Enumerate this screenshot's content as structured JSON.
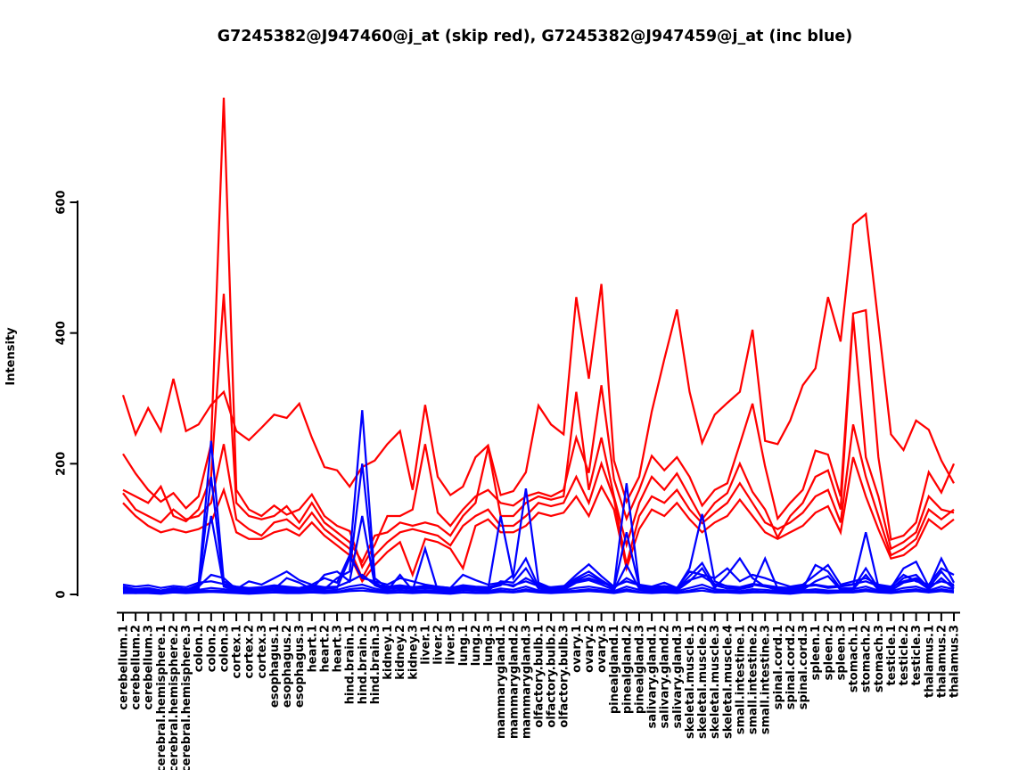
{
  "chart_data": {
    "type": "line",
    "title": "G7245382@J947460@j_at (skip red), G7245382@J947459@j_at (inc blue)",
    "xlabel": "",
    "ylabel": "Intensity",
    "ylim": [
      0,
      770
    ],
    "yticks": [
      0,
      200,
      400,
      600
    ],
    "grid": false,
    "legend": "none (encoded in title: skip = red, inc = blue)",
    "colors": {
      "skip": "#FF0000",
      "inc": "#0000FF"
    },
    "categories": [
      "cerebellum.1",
      "cerebellum.2",
      "cerebellum.3",
      "cerebral.hemisphere.1",
      "cerebral.hemisphere.2",
      "cerebral.hemisphere.3",
      "colon.1",
      "colon.2",
      "colon.3",
      "cortex.1",
      "cortex.2",
      "cortex.3",
      "esophagus.1",
      "esophagus.2",
      "esophagus.3",
      "heart.1",
      "heart.2",
      "heart.3",
      "hind.brain.1",
      "hind.brain.2",
      "hind.brain.3",
      "kidney.1",
      "kidney.2",
      "kidney.3",
      "liver.1",
      "liver.2",
      "liver.3",
      "lung.1",
      "lung.2",
      "lung.3",
      "mammarygland.1",
      "mammarygland.2",
      "mammarygland.3",
      "olfactory.bulb.1",
      "olfactory.bulb.2",
      "olfactory.bulb.3",
      "ovary.1",
      "ovary.2",
      "ovary.3",
      "pinealgland.1",
      "pinealgland.2",
      "pinealgland.3",
      "salivary.gland.1",
      "salivary.gland.2",
      "salivary.gland.3",
      "skeletal.muscle.1",
      "skeletal.muscle.2",
      "skeletal.muscle.3",
      "skeletal.muscle.4",
      "small.intestine.1",
      "small.intestine.2",
      "small.intestine.3",
      "spinal.cord.1",
      "spinal.cord.2",
      "spinal.cord.3",
      "spleen.1",
      "spleen.2",
      "spleen.3",
      "stomach.1",
      "stomach.2",
      "stomach.3",
      "testicle.1",
      "testicle.2",
      "testicle.3",
      "thalamus.1",
      "thalamus.2",
      "thalamus.3"
    ],
    "series": [
      {
        "name": "skip-red-1",
        "color": "#FF0000",
        "values": [
          305,
          245,
          285,
          250,
          330,
          250,
          260,
          290,
          310,
          250,
          236,
          255,
          275,
          270,
          292,
          240,
          195,
          190,
          165,
          195,
          205,
          230,
          250,
          160,
          290,
          180,
          152,
          165,
          210,
          228,
          152,
          158,
          187,
          289,
          260,
          245,
          455,
          330,
          475,
          205,
          142,
          180,
          280,
          360,
          436,
          310,
          232,
          275,
          293,
          310,
          405,
          235,
          230,
          266,
          320,
          346,
          455,
          387,
          566,
          582,
          415,
          245,
          221,
          266,
          252,
          205,
          170
        ]
      },
      {
        "name": "skip-red-2",
        "color": "#FF0000",
        "values": [
          215,
          185,
          160,
          142,
          155,
          132,
          150,
          230,
          760,
          160,
          130,
          120,
          136,
          122,
          130,
          153,
          120,
          105,
          97,
          42,
          76,
          120,
          120,
          130,
          230,
          125,
          105,
          130,
          150,
          160,
          140,
          136,
          150,
          156,
          150,
          160,
          240,
          186,
          320,
          176,
          116,
          160,
          212,
          190,
          210,
          180,
          136,
          160,
          170,
          230,
          292,
          196,
          116,
          140,
          160,
          220,
          214,
          150,
          430,
          435,
          210,
          84,
          90,
          110,
          187,
          156,
          200
        ]
      },
      {
        "name": "skip-red-3",
        "color": "#FF0000",
        "values": [
          160,
          150,
          140,
          165,
          120,
          112,
          130,
          180,
          460,
          140,
          120,
          115,
          120,
          135,
          110,
          140,
          110,
          95,
          80,
          50,
          90,
          95,
          110,
          105,
          110,
          105,
          90,
          120,
          140,
          225,
          120,
          120,
          140,
          150,
          145,
          150,
          310,
          160,
          240,
          150,
          76,
          140,
          180,
          160,
          185,
          150,
          115,
          140,
          155,
          200,
          157,
          130,
          87,
          120,
          140,
          180,
          190,
          130,
          425,
          210,
          150,
          70,
          80,
          95,
          150,
          130,
          125
        ]
      },
      {
        "name": "skip-red-4",
        "color": "#FF0000",
        "values": [
          155,
          130,
          120,
          110,
          130,
          115,
          120,
          140,
          230,
          115,
          100,
          90,
          110,
          115,
          100,
          125,
          100,
          85,
          70,
          25,
          60,
          80,
          95,
          100,
          95,
          90,
          75,
          105,
          120,
          130,
          105,
          105,
          120,
          140,
          135,
          140,
          180,
          140,
          200,
          146,
          46,
          120,
          150,
          140,
          160,
          130,
          109,
          125,
          140,
          170,
          140,
          110,
          100,
          110,
          125,
          150,
          160,
          110,
          260,
          180,
          120,
          60,
          70,
          85,
          130,
          115,
          130
        ]
      },
      {
        "name": "skip-red-5",
        "color": "#FF0000",
        "values": [
          140,
          120,
          105,
          95,
          100,
          95,
          100,
          110,
          160,
          95,
          85,
          85,
          95,
          100,
          90,
          110,
          90,
          75,
          60,
          20,
          45,
          65,
          80,
          30,
          85,
          80,
          70,
          40,
          105,
          115,
          95,
          95,
          105,
          125,
          120,
          125,
          150,
          120,
          165,
          130,
          40,
          100,
          130,
          120,
          140,
          115,
          95,
          110,
          120,
          145,
          120,
          95,
          85,
          95,
          105,
          125,
          135,
          95,
          210,
          150,
          100,
          55,
          60,
          75,
          115,
          100,
          115
        ]
      },
      {
        "name": "inc-blue-1",
        "color": "#0000FF",
        "values": [
          12,
          8,
          10,
          6,
          9,
          7,
          15,
          235,
          20,
          10,
          8,
          9,
          12,
          10,
          8,
          12,
          9,
          10,
          55,
          282,
          25,
          10,
          12,
          9,
          11,
          10,
          8,
          12,
          10,
          9,
          14,
          30,
          162,
          18,
          10,
          12,
          30,
          46,
          28,
          12,
          170,
          15,
          10,
          12,
          9,
          40,
          123,
          20,
          12,
          10,
          15,
          12,
          10,
          9,
          12,
          14,
          10,
          12,
          15,
          95,
          12,
          10,
          40,
          50,
          12,
          55,
          18
        ]
      },
      {
        "name": "inc-blue-2",
        "color": "#0000FF",
        "values": [
          8,
          6,
          7,
          5,
          8,
          6,
          10,
          180,
          15,
          8,
          6,
          7,
          9,
          8,
          7,
          10,
          8,
          25,
          35,
          200,
          18,
          8,
          10,
          8,
          9,
          8,
          7,
          10,
          9,
          8,
          120,
          25,
          55,
          12,
          8,
          9,
          22,
          30,
          20,
          9,
          95,
          12,
          8,
          9,
          8,
          28,
          48,
          14,
          9,
          8,
          12,
          55,
          9,
          7,
          9,
          45,
          35,
          9,
          10,
          40,
          9,
          8,
          25,
          30,
          10,
          35,
          12
        ]
      },
      {
        "name": "inc-blue-3",
        "color": "#0000FF",
        "values": [
          6,
          5,
          6,
          4,
          7,
          5,
          8,
          120,
          12,
          6,
          5,
          6,
          8,
          25,
          18,
          8,
          30,
          35,
          20,
          120,
          14,
          6,
          30,
          6,
          70,
          6,
          5,
          8,
          7,
          6,
          20,
          18,
          40,
          9,
          6,
          7,
          18,
          22,
          15,
          7,
          45,
          9,
          6,
          7,
          6,
          20,
          40,
          10,
          30,
          55,
          25,
          12,
          7,
          5,
          7,
          20,
          28,
          7,
          8,
          30,
          7,
          6,
          18,
          22,
          8,
          25,
          9
        ]
      },
      {
        "name": "inc-blue-4",
        "color": "#0000FF",
        "values": [
          10,
          7,
          8,
          6,
          10,
          8,
          12,
          30,
          25,
          8,
          20,
          15,
          25,
          35,
          22,
          15,
          25,
          18,
          60,
          25,
          20,
          15,
          25,
          20,
          15,
          12,
          10,
          30,
          22,
          15,
          18,
          12,
          25,
          15,
          10,
          12,
          25,
          35,
          22,
          10,
          25,
          15,
          12,
          18,
          10,
          35,
          30,
          25,
          40,
          20,
          30,
          25,
          18,
          12,
          15,
          30,
          45,
          15,
          20,
          25,
          15,
          12,
          30,
          20,
          15,
          40,
          30
        ]
      },
      {
        "name": "inc-blue-5",
        "color": "#0000FF",
        "values": [
          15,
          12,
          14,
          10,
          13,
          11,
          18,
          20,
          16,
          12,
          10,
          11,
          14,
          12,
          10,
          14,
          11,
          12,
          20,
          30,
          15,
          12,
          14,
          11,
          13,
          12,
          10,
          14,
          12,
          11,
          16,
          14,
          20,
          13,
          11,
          13,
          20,
          25,
          18,
          12,
          20,
          14,
          11,
          13,
          10,
          22,
          28,
          16,
          13,
          11,
          16,
          14,
          11,
          10,
          13,
          15,
          12,
          13,
          16,
          20,
          13,
          11,
          20,
          25,
          13,
          20,
          15
        ]
      },
      {
        "name": "inc-blue-6",
        "color": "#0000FF",
        "values": [
          5,
          4,
          5,
          3,
          6,
          4,
          7,
          10,
          8,
          5,
          4,
          5,
          7,
          6,
          5,
          8,
          6,
          7,
          12,
          15,
          9,
          5,
          7,
          5,
          6,
          5,
          4,
          7,
          6,
          5,
          9,
          7,
          12,
          6,
          5,
          6,
          10,
          12,
          9,
          5,
          12,
          7,
          5,
          6,
          5,
          10,
          15,
          8,
          6,
          5,
          8,
          7,
          5,
          4,
          6,
          8,
          6,
          6,
          8,
          12,
          6,
          5,
          10,
          12,
          6,
          12,
          8
        ]
      },
      {
        "name": "inc-blue-7",
        "color": "#0000FF",
        "values": [
          3,
          2,
          3,
          2,
          4,
          3,
          5,
          6,
          5,
          3,
          2,
          3,
          4,
          4,
          3,
          5,
          4,
          4,
          8,
          10,
          6,
          3,
          4,
          3,
          4,
          3,
          2,
          4,
          3,
          3,
          6,
          4,
          8,
          4,
          3,
          4,
          6,
          8,
          6,
          3,
          8,
          4,
          3,
          4,
          3,
          6,
          10,
          5,
          4,
          3,
          5,
          4,
          3,
          2,
          4,
          5,
          4,
          4,
          5,
          8,
          4,
          3,
          6,
          8,
          4,
          8,
          5
        ]
      },
      {
        "name": "inc-blue-8",
        "color": "#0000FF",
        "values": [
          2,
          2,
          2,
          1,
          3,
          2,
          3,
          4,
          3,
          2,
          1,
          2,
          3,
          2,
          2,
          3,
          2,
          3,
          5,
          6,
          4,
          2,
          3,
          2,
          3,
          2,
          1,
          3,
          2,
          2,
          4,
          3,
          5,
          3,
          2,
          3,
          4,
          5,
          4,
          2,
          5,
          3,
          2,
          3,
          2,
          4,
          6,
          3,
          3,
          2,
          3,
          3,
          2,
          1,
          3,
          3,
          2,
          3,
          3,
          5,
          3,
          2,
          4,
          5,
          3,
          5,
          3
        ]
      }
    ]
  }
}
